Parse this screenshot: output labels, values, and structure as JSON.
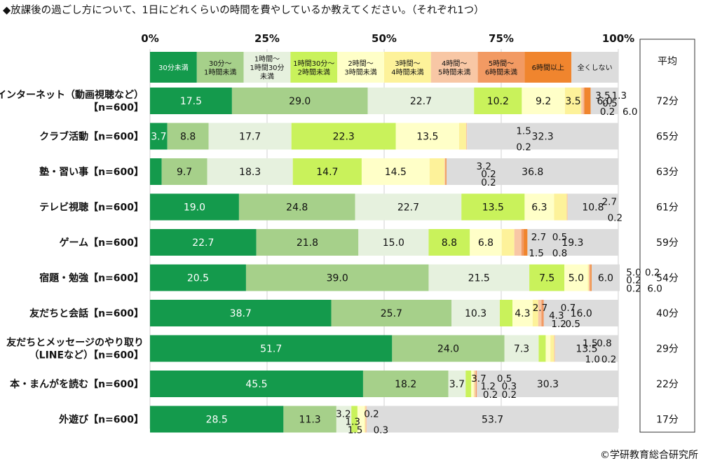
{
  "title": "◆放課後の過ごし方について、1日にどれくらいの時間を費やしているか教えてください。（それぞれ1つ）",
  "copyright": "©学研教育総合研究所",
  "avg_header": "平均",
  "colors": {
    "c1": "#149a4c",
    "c2": "#a6d08a",
    "c3": "#e6f1de",
    "c4": "#c9f25b",
    "c5": "#ffffc8",
    "c6": "#fdf29a",
    "c7": "#f8c7a5",
    "c8": "#f29a63",
    "c9": "#f0852e",
    "c10": "#dcdcdc"
  },
  "chart_data": {
    "type": "bar",
    "orientation": "horizontal",
    "stacked": "percent",
    "xlim": [
      0,
      100
    ],
    "x_ticks": [
      "0%",
      "25%",
      "50%",
      "75%",
      "100%"
    ],
    "legend_position": "top",
    "series": [
      {
        "name": "30分未満",
        "legend": [
          "30分未満"
        ],
        "color": "c1",
        "text_color": "#ffffff",
        "values": [
          17.5,
          3.7,
          2.5,
          19.0,
          22.7,
          20.5,
          38.7,
          51.7,
          45.5,
          28.5
        ]
      },
      {
        "name": "30分～1時間未満",
        "legend": [
          "30分～",
          "1時間未満"
        ],
        "color": "c2",
        "text_color": "#111111",
        "values": [
          29.0,
          8.8,
          9.7,
          24.8,
          21.8,
          39.0,
          25.7,
          24.0,
          18.2,
          11.3
        ]
      },
      {
        "name": "1時間～1時間30分未満",
        "legend": [
          "1時間～",
          "1時間30分",
          "未満"
        ],
        "color": "c3",
        "text_color": "#111111",
        "values": [
          22.7,
          17.7,
          18.3,
          22.7,
          15.0,
          21.5,
          10.3,
          7.3,
          3.7,
          3.2
        ]
      },
      {
        "name": "1時間30分～2時間未満",
        "legend": [
          "1時間30分～",
          "2時間未満"
        ],
        "color": "c4",
        "text_color": "#111111",
        "values": [
          10.2,
          22.3,
          14.7,
          13.5,
          8.8,
          7.5,
          2.7,
          1.5,
          1.2,
          1.3
        ]
      },
      {
        "name": "2時間～3時間未満",
        "legend": [
          "2時間～",
          "3時間未満"
        ],
        "color": "c5",
        "text_color": "#111111",
        "values": [
          9.2,
          13.5,
          14.5,
          6.3,
          6.8,
          5.0,
          4.3,
          1.0,
          0.5,
          1.5
        ]
      },
      {
        "name": "3時間～4時間未満",
        "legend": [
          "3時間～",
          "4時間未満"
        ],
        "color": "c6",
        "text_color": "#111111",
        "values": [
          3.5,
          1.5,
          3.2,
          2.7,
          2.7,
          0.2,
          1.2,
          0.8,
          0.2,
          0.2
        ]
      },
      {
        "name": "4時間～5時間未満",
        "legend": [
          "4時間～",
          "5時間未満"
        ],
        "color": "c7",
        "text_color": "#111111",
        "values": [
          0.5,
          0.2,
          0.2,
          0.2,
          1.5,
          0.2,
          0.7,
          0.2,
          0.3,
          0.3
        ]
      },
      {
        "name": "5時間～6時間未満",
        "legend": [
          "5時間～",
          "6時間未満"
        ],
        "color": "c8",
        "text_color": "#111111",
        "values": [
          0.2,
          0.0,
          0.0,
          0.0,
          0.5,
          0.2,
          0.5,
          0.0,
          0.2,
          0.0
        ]
      },
      {
        "name": "6時間以上",
        "legend": [
          "6時間以上"
        ],
        "color": "c9",
        "text_color": "#111111",
        "values": [
          1.3,
          0.0,
          0.2,
          0.0,
          0.8,
          0.2,
          0.0,
          0.0,
          0.0,
          0.0
        ]
      },
      {
        "name": "全くしない",
        "legend": [
          "全くしない"
        ],
        "color": "c10",
        "text_color": "#111111",
        "values": [
          6.0,
          32.3,
          36.8,
          10.8,
          19.3,
          6.0,
          16.0,
          13.5,
          30.3,
          53.7
        ]
      }
    ],
    "categories": [
      {
        "label": [
          "インターネット（動画視聴など）",
          "【n=600】"
        ],
        "avg": "72分"
      },
      {
        "label": [
          "クラブ活動【n=600】"
        ],
        "avg": "65分"
      },
      {
        "label": [
          "塾・習い事【n=600】"
        ],
        "avg": "63分"
      },
      {
        "label": [
          "テレビ視聴【n=600】"
        ],
        "avg": "61分"
      },
      {
        "label": [
          "ゲーム【n=600】"
        ],
        "avg": "59分"
      },
      {
        "label": [
          "宿題・勉強【n=600】"
        ],
        "avg": "54分"
      },
      {
        "label": [
          "友だちと会話【n=600】"
        ],
        "avg": "40分"
      },
      {
        "label": [
          "友だちとメッセージのやり取り",
          "（LINEなど）【n=600】"
        ],
        "avg": "29分"
      },
      {
        "label": [
          "本・まんがを読む【n=600】"
        ],
        "avg": "22分"
      },
      {
        "label": [
          "外遊び【n=600】"
        ],
        "avg": "17分"
      }
    ],
    "small_labels": [
      [
        {
          "text": "3.5",
          "dx": 8.0,
          "dy": -8
        },
        {
          "text": "1.3",
          "dx": 11.5,
          "dy": -8
        },
        {
          "text": "0.5",
          "dx": 9.5,
          "dy": 3
        },
        {
          "text": "0.2",
          "dx": 9.0,
          "dy": 15
        },
        {
          "text": "6.0",
          "dx": 13.8,
          "dy": 15
        }
      ],
      [
        {
          "text": "1.5",
          "dx": 13.8,
          "dy": -8
        },
        {
          "text": "0.2",
          "dx": 13.8,
          "dy": 15
        }
      ],
      [
        {
          "text": "3.2",
          "dx": 11.5,
          "dy": -8
        },
        {
          "text": "0.2",
          "dx": 12.5,
          "dy": 3
        },
        {
          "text": "0.2",
          "dx": 12.5,
          "dy": 15
        }
      ],
      [
        {
          "text": "2.7",
          "dx": 11.8,
          "dy": -8
        },
        {
          "text": "0.2",
          "dx": 13.0,
          "dy": 15
        }
      ],
      [
        {
          "text": "2.7",
          "dx": 8.0,
          "dy": -8
        },
        {
          "text": "0.5",
          "dx": 12.5,
          "dy": -8
        },
        {
          "text": "1.5",
          "dx": 7.5,
          "dy": 15
        },
        {
          "text": "0.8",
          "dx": 12.5,
          "dy": 15
        }
      ],
      [
        {
          "text": "5.0",
          "dx": 9.5,
          "dy": -8
        },
        {
          "text": "0.2",
          "dx": 13.5,
          "dy": -8
        },
        {
          "text": "0.2",
          "dx": 9.5,
          "dy": 3
        },
        {
          "text": "0.2",
          "dx": 9.5,
          "dy": 15
        },
        {
          "text": "6.0",
          "dx": 14.0,
          "dy": 15
        }
      ],
      [
        {
          "text": "2.7",
          "dx": 1.5,
          "dy": -8
        },
        {
          "text": "4.3",
          "dx": 5.0,
          "dy": 3
        },
        {
          "text": "0.7",
          "dx": 7.5,
          "dy": -8
        },
        {
          "text": "1.2",
          "dx": 5.5,
          "dy": 15
        },
        {
          "text": "0.5",
          "dx": 8.5,
          "dy": 15
        }
      ],
      [
        {
          "text": "1.5",
          "dx": 8.5,
          "dy": -8
        },
        {
          "text": "0.8",
          "dx": 11.5,
          "dy": -8
        },
        {
          "text": "1.0",
          "dx": 9.0,
          "dy": 15
        },
        {
          "text": "0.2",
          "dx": 12.5,
          "dy": 15
        }
      ],
      [
        {
          "text": "3.7",
          "dx": 1.0,
          "dy": -8
        },
        {
          "text": "0.5",
          "dx": 6.5,
          "dy": -8
        },
        {
          "text": "1.2",
          "dx": 3.0,
          "dy": 3
        },
        {
          "text": "0.3",
          "dx": 7.5,
          "dy": 3
        },
        {
          "text": "0.2",
          "dx": 3.5,
          "dy": 15
        },
        {
          "text": "0.2",
          "dx": 7.5,
          "dy": 15
        }
      ],
      [
        {
          "text": "3.2",
          "dx": -4.5,
          "dy": -8
        },
        {
          "text": "0.2",
          "dx": 1.5,
          "dy": -8
        },
        {
          "text": "1.3",
          "dx": -2.5,
          "dy": 3
        },
        {
          "text": "1.5",
          "dx": -2.0,
          "dy": 15
        },
        {
          "text": "0.3",
          "dx": 3.5,
          "dy": 15
        }
      ]
    ]
  }
}
